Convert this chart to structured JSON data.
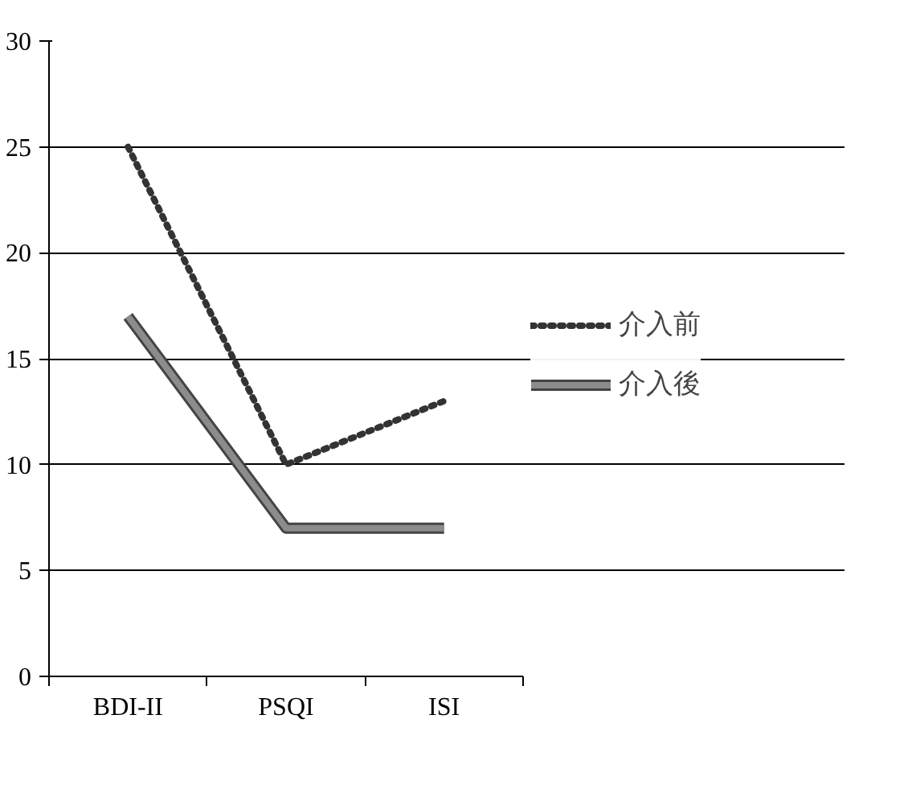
{
  "chart_data": {
    "type": "line",
    "categories": [
      "BDI-II",
      "PSQI",
      "ISI"
    ],
    "series": [
      {
        "name": "介入前",
        "color": "#333333",
        "values": [
          25,
          10,
          13
        ],
        "line_style": "dotted"
      },
      {
        "name": "介入後",
        "color": "#8c8c8c",
        "values": [
          17,
          7,
          7
        ],
        "line_style": "solid"
      }
    ],
    "ylim": [
      0,
      30
    ],
    "yticks": [
      0,
      5,
      10,
      15,
      20,
      25,
      30
    ],
    "grid": "y",
    "legend": "right",
    "marker": "none"
  }
}
